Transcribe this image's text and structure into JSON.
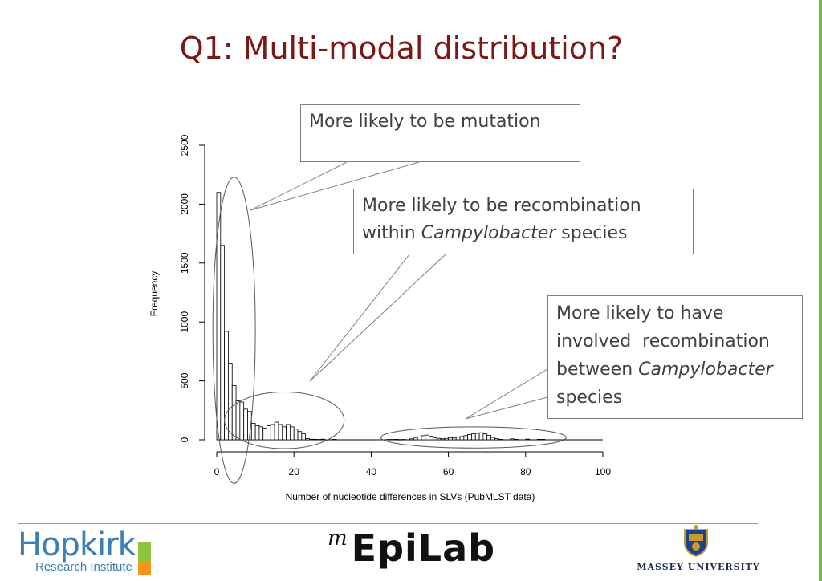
{
  "slide": {
    "title": "Q1: Multi-modal distribution?"
  },
  "callouts": {
    "mutation": "More likely to be mutation",
    "within": {
      "line1": "More likely to be recombination",
      "line2_pre": "within ",
      "line2_em": "Campylobacter",
      "line2_post": " species"
    },
    "between": {
      "line1": "More likely to have",
      "line2": "involved  recombination",
      "line3_pre": "between ",
      "line3_em": "Campylobacter",
      "line4": "species"
    }
  },
  "logos": {
    "hopkirk": "Hopkirk",
    "hopkirk_sub": "Research Institute",
    "epilab_m": "m",
    "epilab": "EpiLab",
    "massey": "MASSEY UNIVERSITY"
  },
  "colors": {
    "title": "#7b1818",
    "accent_green": "#6dbf3a"
  },
  "chart_data": {
    "type": "bar",
    "title": "",
    "xlabel": "Number of nucleotide differences in SLVs (PubMLST data)",
    "ylabel": "Frequency",
    "xlim": [
      0,
      100
    ],
    "ylim": [
      0,
      2500
    ],
    "xticks": [
      "0",
      "20",
      "40",
      "60",
      "80",
      "100"
    ],
    "yticks": [
      "0",
      "500",
      "1000",
      "1500",
      "2000",
      "2500"
    ],
    "bin_width": 1,
    "bins": [
      {
        "x": 0,
        "y": 2100
      },
      {
        "x": 1,
        "y": 1650
      },
      {
        "x": 2,
        "y": 920
      },
      {
        "x": 3,
        "y": 650
      },
      {
        "x": 4,
        "y": 460
      },
      {
        "x": 5,
        "y": 330
      },
      {
        "x": 6,
        "y": 320
      },
      {
        "x": 7,
        "y": 260
      },
      {
        "x": 8,
        "y": 240
      },
      {
        "x": 9,
        "y": 140
      },
      {
        "x": 10,
        "y": 120
      },
      {
        "x": 11,
        "y": 110
      },
      {
        "x": 12,
        "y": 100
      },
      {
        "x": 13,
        "y": 120
      },
      {
        "x": 14,
        "y": 130
      },
      {
        "x": 15,
        "y": 150
      },
      {
        "x": 16,
        "y": 130
      },
      {
        "x": 17,
        "y": 110
      },
      {
        "x": 18,
        "y": 130
      },
      {
        "x": 19,
        "y": 110
      },
      {
        "x": 20,
        "y": 90
      },
      {
        "x": 21,
        "y": 70
      },
      {
        "x": 22,
        "y": 50
      },
      {
        "x": 23,
        "y": 10
      },
      {
        "x": 24,
        "y": 5
      },
      {
        "x": 25,
        "y": 4
      },
      {
        "x": 26,
        "y": 3
      },
      {
        "x": 27,
        "y": 5
      },
      {
        "x": 30,
        "y": 4
      },
      {
        "x": 44,
        "y": 3
      },
      {
        "x": 45,
        "y": 3
      },
      {
        "x": 46,
        "y": 4
      },
      {
        "x": 47,
        "y": 2
      },
      {
        "x": 48,
        "y": 3
      },
      {
        "x": 50,
        "y": 8
      },
      {
        "x": 51,
        "y": 15
      },
      {
        "x": 52,
        "y": 25
      },
      {
        "x": 53,
        "y": 35
      },
      {
        "x": 54,
        "y": 40
      },
      {
        "x": 55,
        "y": 30
      },
      {
        "x": 56,
        "y": 18
      },
      {
        "x": 57,
        "y": 12
      },
      {
        "x": 58,
        "y": 8
      },
      {
        "x": 59,
        "y": 12
      },
      {
        "x": 60,
        "y": 18
      },
      {
        "x": 61,
        "y": 15
      },
      {
        "x": 62,
        "y": 22
      },
      {
        "x": 63,
        "y": 28
      },
      {
        "x": 64,
        "y": 35
      },
      {
        "x": 65,
        "y": 45
      },
      {
        "x": 66,
        "y": 50
      },
      {
        "x": 67,
        "y": 55
      },
      {
        "x": 68,
        "y": 60
      },
      {
        "x": 69,
        "y": 50
      },
      {
        "x": 70,
        "y": 38
      },
      {
        "x": 71,
        "y": 20
      },
      {
        "x": 72,
        "y": 10
      },
      {
        "x": 73,
        "y": 4
      },
      {
        "x": 76,
        "y": 8
      },
      {
        "x": 77,
        "y": 4
      },
      {
        "x": 80,
        "y": 6
      },
      {
        "x": 83,
        "y": 4
      },
      {
        "x": 84,
        "y": 4
      }
    ],
    "grid": false,
    "annotations": [
      {
        "name": "mutation-ellipse",
        "cx": 4.5,
        "cy": 930,
        "rx": 5.5,
        "ry": 1300
      },
      {
        "name": "within-ellipse",
        "cx": 17.5,
        "cy": 165,
        "rx": 15.5,
        "ry": 240
      },
      {
        "name": "between-ellipse",
        "cx": 66.5,
        "cy": 20,
        "rx": 24,
        "ry": 90
      }
    ]
  }
}
